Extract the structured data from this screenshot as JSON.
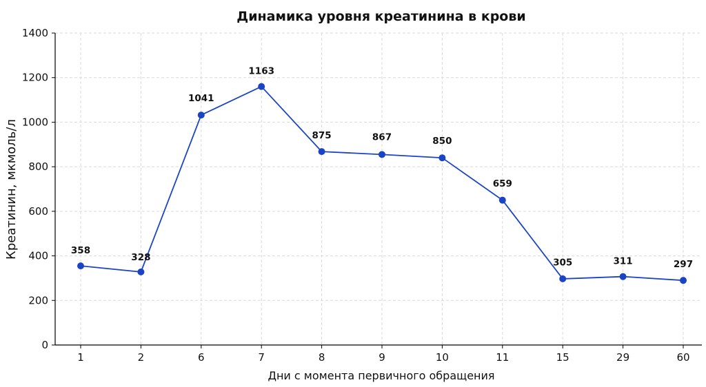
{
  "chart_data": {
    "type": "line",
    "title": "Динамика уровня креатинина в крови",
    "xlabel": "Дни с момента первичного обращения",
    "ylabel": "Креатинин, мкмоль/л",
    "categories": [
      "1",
      "2",
      "6",
      "7",
      "8",
      "9",
      "10",
      "11",
      "15",
      "29",
      "60"
    ],
    "series": [
      {
        "values": [
          358,
          328,
          1041,
          1163,
          875,
          867,
          850,
          659,
          305,
          311,
          297
        ],
        "plotted": [
          355,
          328,
          1032,
          1160,
          868,
          855,
          840,
          650,
          297,
          307,
          290
        ],
        "color": "#1a44c4"
      }
    ],
    "ylim": [
      0,
      1400
    ],
    "yticks": [
      0,
      200,
      400,
      600,
      800,
      1000,
      1200,
      1400
    ],
    "grid": true,
    "legend": "none"
  }
}
